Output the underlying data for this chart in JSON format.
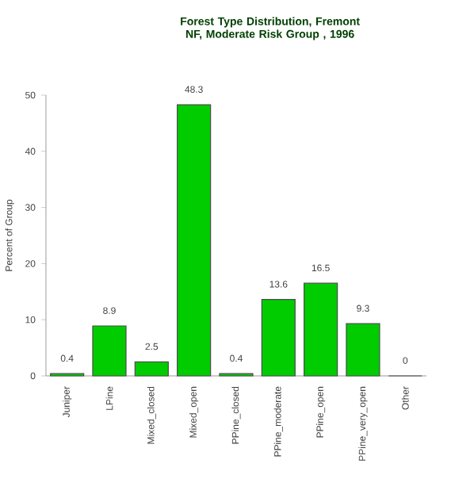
{
  "chart_data": {
    "type": "bar",
    "title": "Forest Type Distribution, Fremont NF, Moderate Risk Group , 1996",
    "ylabel": "Percent of Group",
    "categories": [
      "Juniper",
      "LPine",
      "Mixed_closed",
      "Mixed_open",
      "PPine_closed",
      "PPine_moderate",
      "PPine_open",
      "PPine_very_open",
      "Other"
    ],
    "values": [
      0.4,
      8.9,
      2.5,
      48.3,
      0.4,
      13.6,
      16.5,
      9.3,
      0
    ],
    "color": "#00cc00",
    "ylim": [
      0,
      50
    ],
    "yticks": [
      0,
      10,
      20,
      30,
      40,
      50
    ],
    "data_labels": true
  }
}
